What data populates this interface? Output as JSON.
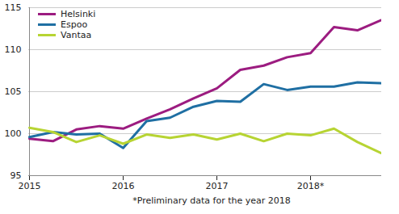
{
  "chart_data": {
    "type": "line",
    "caption": "*Preliminary data for the year 2018",
    "categories": [
      "2015",
      null,
      null,
      null,
      "2016",
      null,
      null,
      null,
      "2017",
      null,
      null,
      null,
      "2018*",
      null,
      null,
      null
    ],
    "series": [
      {
        "name": "Helsinki",
        "color": "#9c1c80",
        "values": [
          99.4,
          99.1,
          100.5,
          100.9,
          100.6,
          101.8,
          102.9,
          104.2,
          105.4,
          107.6,
          108.1,
          109.1,
          109.6,
          112.7,
          112.3,
          113.5
        ]
      },
      {
        "name": "Espoo",
        "color": "#1f6fa3",
        "values": [
          99.6,
          100.2,
          99.9,
          100.0,
          98.3,
          101.5,
          101.9,
          103.2,
          103.9,
          103.8,
          105.9,
          105.2,
          105.6,
          105.6,
          106.1,
          106.0
        ]
      },
      {
        "name": "Vantaa",
        "color": "#b7d433",
        "values": [
          100.7,
          100.2,
          99.0,
          99.8,
          98.8,
          99.9,
          99.5,
          99.9,
          99.3,
          100.0,
          99.1,
          100.0,
          99.8,
          100.6,
          99.0,
          97.7
        ]
      }
    ],
    "ylim": [
      95,
      115
    ],
    "yticks": [
      95,
      100,
      105,
      110,
      115
    ],
    "grid": true,
    "legend": "top-left"
  }
}
